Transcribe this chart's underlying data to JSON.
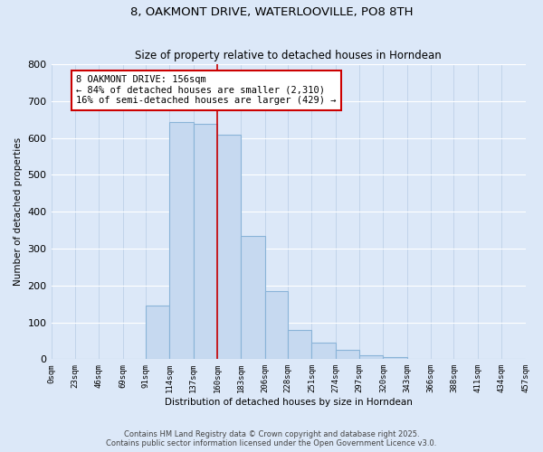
{
  "title": "8, OAKMONT DRIVE, WATERLOOVILLE, PO8 8TH",
  "subtitle": "Size of property relative to detached houses in Horndean",
  "xlabel": "Distribution of detached houses by size in Horndean",
  "ylabel": "Number of detached properties",
  "bin_edges": [
    0,
    23,
    46,
    69,
    91,
    114,
    137,
    160,
    183,
    206,
    228,
    251,
    274,
    297,
    320,
    343,
    366,
    388,
    411,
    434,
    457
  ],
  "bin_labels": [
    "0sqm",
    "23sqm",
    "46sqm",
    "69sqm",
    "91sqm",
    "114sqm",
    "137sqm",
    "160sqm",
    "183sqm",
    "206sqm",
    "228sqm",
    "251sqm",
    "274sqm",
    "297sqm",
    "320sqm",
    "343sqm",
    "366sqm",
    "388sqm",
    "411sqm",
    "434sqm",
    "457sqm"
  ],
  "counts": [
    0,
    0,
    0,
    1,
    145,
    642,
    638,
    610,
    335,
    185,
    80,
    45,
    25,
    10,
    5,
    2,
    1,
    0,
    0,
    0
  ],
  "bar_color": "#c6d9f0",
  "bar_edge_color": "#8ab4d8",
  "vline_x": 160,
  "vline_color": "#cc0000",
  "annotation_text": "8 OAKMONT DRIVE: 156sqm\n← 84% of detached houses are smaller (2,310)\n16% of semi-detached houses are larger (429) →",
  "annotation_box_color": "#ffffff",
  "annotation_border_color": "#cc0000",
  "footer_text": "Contains HM Land Registry data © Crown copyright and database right 2025.\nContains public sector information licensed under the Open Government Licence v3.0.",
  "ylim": [
    0,
    800
  ],
  "yticks": [
    0,
    100,
    200,
    300,
    400,
    500,
    600,
    700,
    800
  ],
  "background_color": "#dce8f8",
  "plot_background": "#dce8f8",
  "title_fontsize": 9.5,
  "subtitle_fontsize": 8.5
}
